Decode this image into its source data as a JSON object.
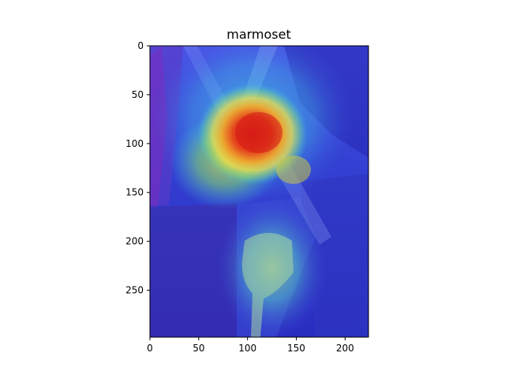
{
  "figure": {
    "title": "marmoset",
    "image_width": 224,
    "image_height": 298,
    "overlay_colormap": "jet",
    "x_axis": {
      "ticks": [
        0,
        50,
        100,
        150,
        200
      ],
      "tick_labels": [
        "0",
        "50",
        "100",
        "150",
        "200"
      ]
    },
    "y_axis": {
      "ticks": [
        0,
        50,
        100,
        150,
        200,
        250
      ],
      "tick_labels": [
        "0",
        "50",
        "100",
        "150",
        "200",
        "250"
      ]
    },
    "heatmap_hotspots": [
      {
        "name": "primary-focus-head",
        "x_center": 108,
        "y_center": 85,
        "intensity": 1.0,
        "rx": 42,
        "ry": 44
      },
      {
        "name": "secondary-focus-body",
        "x_center": 75,
        "y_center": 120,
        "intensity": 0.55,
        "rx": 50,
        "ry": 45
      },
      {
        "name": "lower-glow",
        "x_center": 120,
        "y_center": 235,
        "intensity": 0.35,
        "rx": 48,
        "ry": 60
      }
    ],
    "colors": {
      "background_low": "#2a2fd6",
      "cold_blue": "#3b4fe0",
      "cyan": "#38c9e8",
      "green": "#7fdc6a",
      "yellow": "#f3e24a",
      "orange": "#f58a2a",
      "red": "#e0301e",
      "axis": "#000000"
    }
  }
}
